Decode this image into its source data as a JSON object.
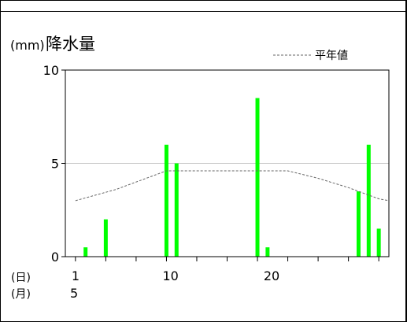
{
  "chart_data": {
    "type": "bar",
    "title": "降水量",
    "unit_label": "(mm)",
    "legend": {
      "label": "平年値",
      "placement": "top-right",
      "style": "dashed-line"
    },
    "x_day_label": "(日)",
    "x_month_label": "(月)",
    "month_value": "5",
    "x_range": [
      0,
      32
    ],
    "ylim": [
      0,
      10
    ],
    "y_ticks": [
      0,
      5,
      10
    ],
    "x_tick_labels": [
      {
        "day": 1,
        "label": "1"
      },
      {
        "day": 10,
        "label": "10"
      },
      {
        "day": 20,
        "label": "20"
      }
    ],
    "x_minor_ticks": [
      1,
      4,
      7,
      10,
      13,
      16,
      19,
      22,
      25,
      28,
      31
    ],
    "grid": {
      "horizontal_at": [
        5
      ]
    },
    "series": [
      {
        "type": "bar",
        "color": "#00ff00",
        "points": [
          {
            "day": 2,
            "value": 0.5
          },
          {
            "day": 4,
            "value": 2
          },
          {
            "day": 10,
            "value": 6
          },
          {
            "day": 11,
            "value": 5
          },
          {
            "day": 19,
            "value": 8.5
          },
          {
            "day": 20,
            "value": 0.5
          },
          {
            "day": 29,
            "value": 3.5
          },
          {
            "day": 30,
            "value": 6
          },
          {
            "day": 31,
            "value": 1.5
          }
        ]
      },
      {
        "name": "平年値",
        "type": "line",
        "style": "dashed",
        "color": "#666666",
        "points": [
          {
            "day": 1,
            "value": 3.0
          },
          {
            "day": 3,
            "value": 3.3
          },
          {
            "day": 5,
            "value": 3.6
          },
          {
            "day": 7,
            "value": 4.0
          },
          {
            "day": 9,
            "value": 4.4
          },
          {
            "day": 10,
            "value": 4.6
          },
          {
            "day": 15,
            "value": 4.6
          },
          {
            "day": 20,
            "value": 4.6
          },
          {
            "day": 22,
            "value": 4.6
          },
          {
            "day": 25,
            "value": 4.2
          },
          {
            "day": 28,
            "value": 3.7
          },
          {
            "day": 30,
            "value": 3.3
          },
          {
            "day": 31,
            "value": 3.1
          },
          {
            "day": 32,
            "value": 3.0
          }
        ]
      }
    ]
  }
}
